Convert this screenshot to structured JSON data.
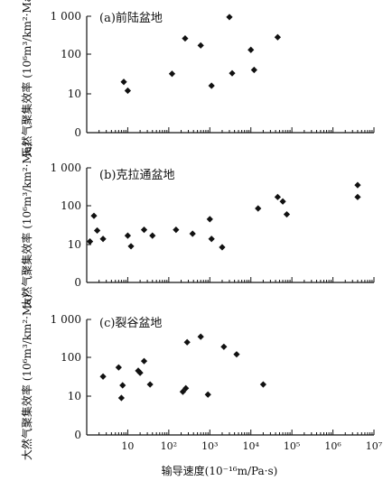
{
  "chart_data": [
    {
      "type": "scatter",
      "title": "(a)前陆盆地",
      "ylabel": "天然气聚集效率 (10⁶m³/km²·Ma)",
      "x_scale": "log",
      "y_scale": "log",
      "y_ticks": [
        "1 000",
        "100",
        "10",
        "0"
      ],
      "points": [
        {
          "x": 8,
          "y": 20
        },
        {
          "x": 10,
          "y": 12
        },
        {
          "x": 120,
          "y": 32
        },
        {
          "x": 250,
          "y": 260
        },
        {
          "x": 600,
          "y": 170
        },
        {
          "x": 1100,
          "y": 16
        },
        {
          "x": 3000,
          "y": 950
        },
        {
          "x": 3500,
          "y": 33
        },
        {
          "x": 10000,
          "y": 130
        },
        {
          "x": 12000,
          "y": 40
        },
        {
          "x": 45000,
          "y": 280
        }
      ]
    },
    {
      "type": "scatter",
      "title": "(b)克拉通盆地",
      "ylabel": "大然气聚集效率 (10⁶m³/km²·Ma)",
      "x_scale": "log",
      "y_scale": "log",
      "y_ticks": [
        "1 000",
        "100",
        "10",
        "0"
      ],
      "points": [
        {
          "x": 1.2,
          "y": 12
        },
        {
          "x": 1.5,
          "y": 55
        },
        {
          "x": 1.8,
          "y": 23
        },
        {
          "x": 2.5,
          "y": 14
        },
        {
          "x": 10,
          "y": 17
        },
        {
          "x": 12,
          "y": 9
        },
        {
          "x": 25,
          "y": 24
        },
        {
          "x": 40,
          "y": 17
        },
        {
          "x": 150,
          "y": 24
        },
        {
          "x": 380,
          "y": 19
        },
        {
          "x": 1000,
          "y": 45
        },
        {
          "x": 1100,
          "y": 14
        },
        {
          "x": 2000,
          "y": 8.5
        },
        {
          "x": 15000,
          "y": 85
        },
        {
          "x": 45000,
          "y": 170
        },
        {
          "x": 60000,
          "y": 130
        },
        {
          "x": 75000,
          "y": 60
        },
        {
          "x": 4000000,
          "y": 350
        },
        {
          "x": 4000000,
          "y": 170
        }
      ]
    },
    {
      "type": "scatter",
      "title": "(c)裂谷盆地",
      "ylabel": "大然气聚集效率 (10⁶m³/km²·Ma)",
      "xlabel": "输导速度(10⁻¹⁶m/Pa·s)",
      "x_scale": "log",
      "y_scale": "log",
      "x_ticks": [
        "10",
        "10²",
        "10³",
        "10⁴",
        "10⁵",
        "10⁶",
        "10⁷"
      ],
      "y_ticks": [
        "1 000",
        "100",
        "10",
        "0"
      ],
      "points": [
        {
          "x": 2.5,
          "y": 32
        },
        {
          "x": 6,
          "y": 55
        },
        {
          "x": 7,
          "y": 9
        },
        {
          "x": 7.5,
          "y": 19
        },
        {
          "x": 18,
          "y": 45
        },
        {
          "x": 20,
          "y": 40
        },
        {
          "x": 25,
          "y": 80
        },
        {
          "x": 35,
          "y": 20
        },
        {
          "x": 220,
          "y": 13
        },
        {
          "x": 260,
          "y": 16
        },
        {
          "x": 280,
          "y": 250
        },
        {
          "x": 600,
          "y": 350
        },
        {
          "x": 900,
          "y": 11
        },
        {
          "x": 2200,
          "y": 190
        },
        {
          "x": 4500,
          "y": 120
        },
        {
          "x": 20000,
          "y": 20
        }
      ]
    }
  ]
}
